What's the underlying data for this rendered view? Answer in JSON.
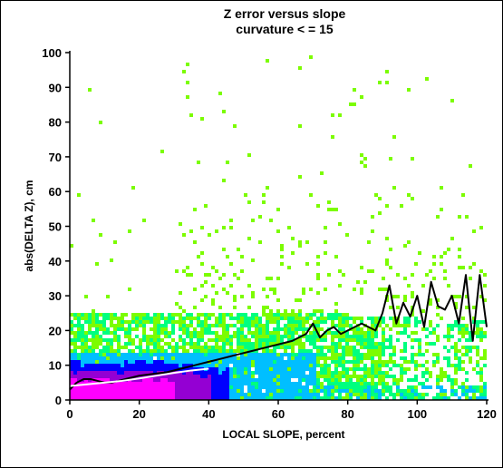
{
  "chart_data": {
    "type": "heatmap",
    "title": "Z error versus slope",
    "subtitle": "curvature < = 15",
    "xlabel": "LOCAL SLOPE, percent",
    "ylabel": "abs(DELTA Z), cm",
    "xlim": [
      0,
      120
    ],
    "ylim": [
      0,
      100
    ],
    "x_ticks": [
      0,
      20,
      40,
      60,
      80,
      100,
      120
    ],
    "y_ticks": [
      0,
      10,
      20,
      30,
      40,
      50,
      60,
      70,
      80,
      90,
      100
    ],
    "grid": false,
    "colors": {
      "sparse": "#7CFC00",
      "low": "#00FF7F",
      "medium": "#00BFFF",
      "high": "#0000FF",
      "very_high": "#9400D3",
      "peak": "#FF00FF"
    },
    "series": [
      {
        "style": "black-line",
        "x": [
          0,
          2,
          4,
          6,
          8,
          10,
          12,
          14,
          16,
          18,
          20,
          24,
          28,
          32,
          36,
          40,
          44,
          48,
          52,
          56,
          60,
          64,
          68,
          70,
          72,
          74,
          76,
          78,
          80,
          84,
          88,
          90,
          92,
          94,
          96,
          98,
          100,
          102,
          104,
          106,
          108,
          110,
          112,
          114,
          116,
          118,
          120
        ],
        "y": [
          3,
          5,
          6,
          6,
          5.5,
          5,
          5,
          5.5,
          6,
          6.5,
          7,
          7.5,
          8,
          9,
          10,
          11,
          12,
          13,
          14,
          15,
          16,
          17,
          19,
          22,
          18,
          20,
          21,
          19,
          20,
          22,
          20,
          25,
          33,
          22,
          28,
          24,
          30,
          21,
          34,
          27,
          26,
          30,
          22,
          36,
          17,
          36,
          21
        ]
      },
      {
        "style": "white-line",
        "x": [
          0,
          5,
          10,
          15,
          20,
          25,
          30,
          35,
          40
        ],
        "y": [
          4,
          4.5,
          5,
          5.5,
          6.2,
          7,
          7.8,
          8.5,
          9
        ]
      }
    ]
  }
}
